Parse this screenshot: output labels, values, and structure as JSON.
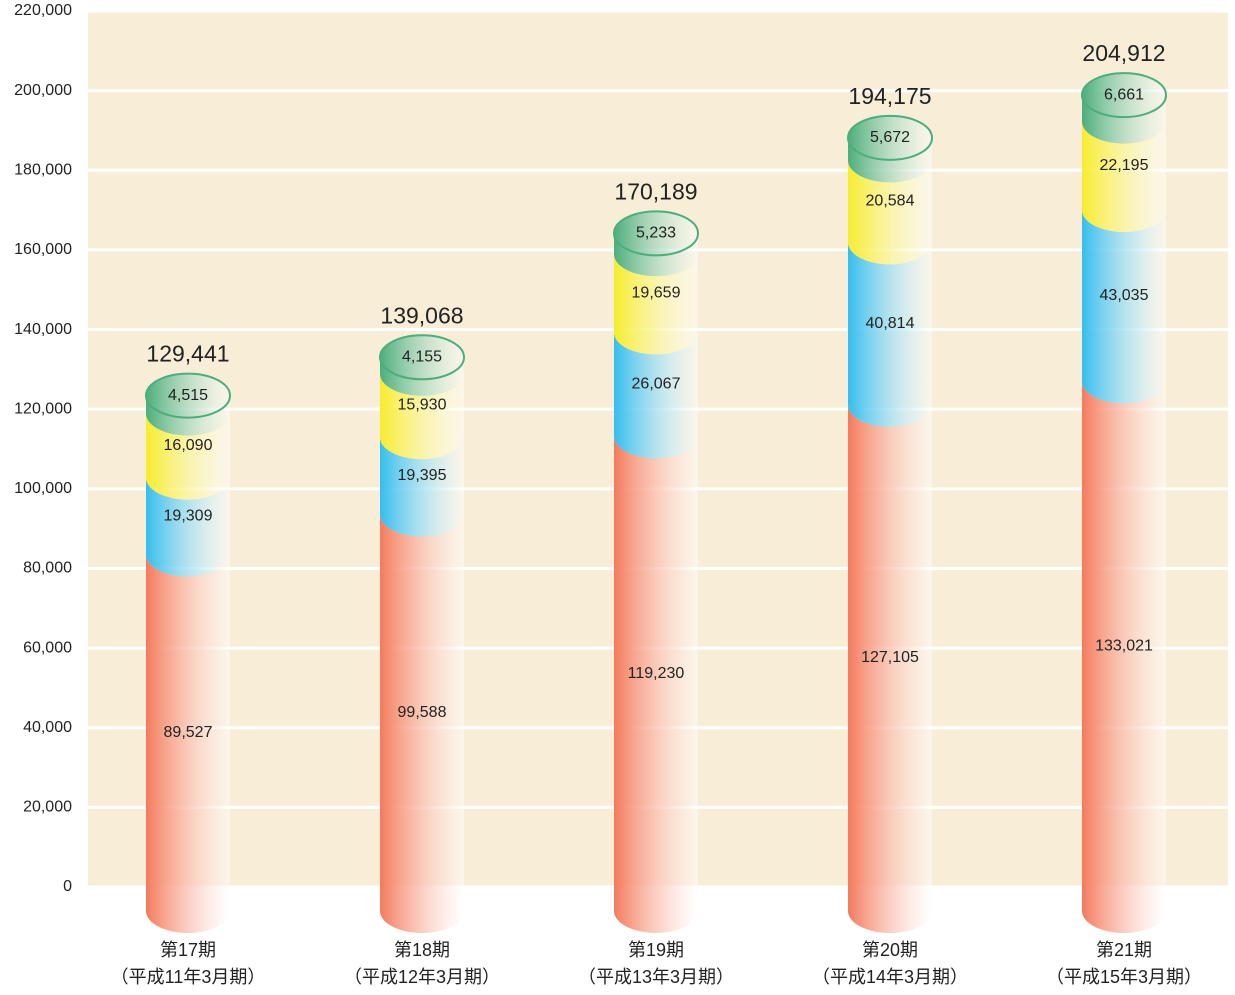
{
  "chart_data": {
    "type": "cylinder-stack",
    "categories": [
      "第17期",
      "第18期",
      "第19期",
      "第20期",
      "第21期"
    ],
    "category_sublabels": [
      "（平成11年3月期）",
      "（平成12年3月期）",
      "（平成13年3月期）",
      "（平成14年3月期）",
      "（平成15年3月期）"
    ],
    "series": [
      {
        "color": "#f47a5c",
        "values": [
          89527,
          99588,
          119230,
          127105,
          133021
        ],
        "value_labels": [
          "89,527",
          "99,588",
          "119,230",
          "127,105",
          "133,021"
        ]
      },
      {
        "color": "#35bdee",
        "values": [
          19309,
          19395,
          26067,
          40814,
          43035
        ],
        "value_labels": [
          "19,309",
          "19,395",
          "26,067",
          "40,814",
          "43,035"
        ]
      },
      {
        "color": "#f7ec2e",
        "values": [
          16090,
          15930,
          19659,
          20584,
          22195
        ],
        "value_labels": [
          "16,090",
          "15,930",
          "19,659",
          "20,584",
          "22,195"
        ]
      },
      {
        "color": "#4cae7b",
        "values": [
          4515,
          4155,
          5233,
          5672,
          6661
        ],
        "value_labels": [
          "4,515",
          "4,155",
          "5,233",
          "5,672",
          "6,661"
        ]
      }
    ],
    "totals": [
      129441,
      139068,
      170189,
      194175,
      204912
    ],
    "totals_labels": [
      "129,441",
      "139,068",
      "170,189",
      "194,175",
      "204,912"
    ],
    "ylim": [
      0,
      220000
    ],
    "yticks": [
      0,
      {
        "value": 20000,
        "label": "20,000"
      },
      {
        "value": 40000,
        "label": "40,000"
      },
      {
        "value": 60000,
        "label": "60,000"
      },
      {
        "value": 80000,
        "label": "80,000"
      },
      {
        "value": 100000,
        "label": "100,000"
      },
      {
        "value": 120000,
        "label": "120,000"
      },
      {
        "value": 140000,
        "label": "140,000"
      },
      {
        "value": 160000,
        "label": "160,000"
      },
      {
        "value": 180000,
        "label": "180,000"
      },
      {
        "value": 200000,
        "label": "200,000"
      },
      {
        "value": 220000,
        "label": "220,000"
      }
    ],
    "grid": true
  }
}
